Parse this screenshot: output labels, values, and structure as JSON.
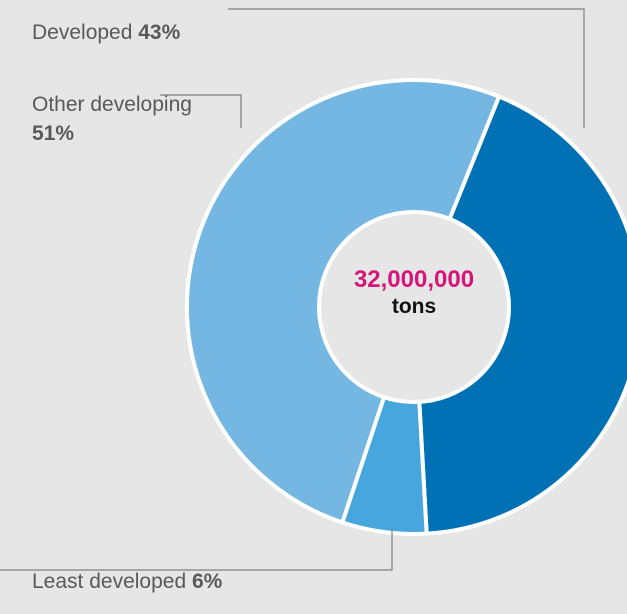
{
  "chart_data": {
    "type": "pie",
    "categories": [
      "Developed",
      "Least developed",
      "Other developing"
    ],
    "values": [
      43,
      6,
      51
    ],
    "value_labels": [
      "43%",
      "6%",
      "51%"
    ],
    "colors": [
      "#0071b5",
      "#47a6de",
      "#74b7e3"
    ],
    "center": {
      "value": "32,000,000",
      "unit": "tons"
    }
  }
}
